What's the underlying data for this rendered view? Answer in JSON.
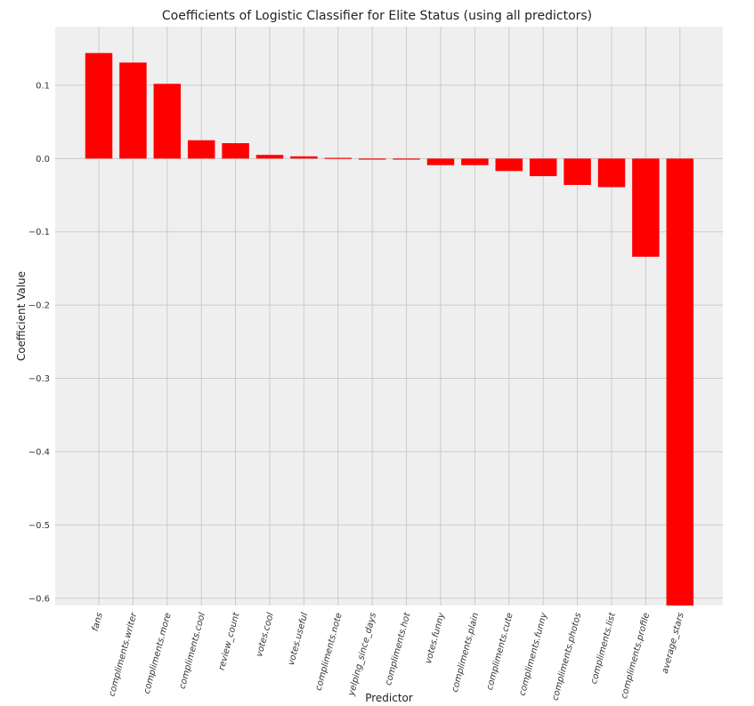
{
  "chart_data": {
    "type": "bar",
    "title": "Coefficients of Logistic Classifier for Elite Status (using all predictors)",
    "xlabel": "Predictor",
    "ylabel": "Coefficient Value",
    "categories": [
      "fans",
      "compliments.writer",
      "compliments.more",
      "compliments.cool",
      "review_count",
      "votes.cool",
      "votes.useful",
      "compliments.note",
      "yelping_since_days",
      "compliments.hot",
      "votes.funny",
      "compliments.plain",
      "compliments.cute",
      "compliments.funny",
      "compliments.photos",
      "compliments.list",
      "compliments.profile",
      "average_stars"
    ],
    "values": [
      0.144,
      0.131,
      0.102,
      0.025,
      0.021,
      0.005,
      0.003,
      0.001,
      -0.001,
      -0.001,
      -0.009,
      -0.009,
      -0.017,
      -0.024,
      -0.036,
      -0.039,
      -0.134,
      -0.62
    ],
    "ylim": [
      -0.61,
      0.18
    ],
    "yticks": [
      0.1,
      0.0,
      -0.1,
      -0.2,
      -0.3,
      -0.4,
      -0.5,
      -0.6
    ],
    "ytick_labels": [
      "0.1",
      "0.0",
      "−0.1",
      "−0.2",
      "−0.3",
      "−0.4",
      "−0.5",
      "−0.6"
    ],
    "bar_color": "#ff0000",
    "background_color": "#efefef",
    "grid_color": "#cbcbcb",
    "grid": true
  }
}
